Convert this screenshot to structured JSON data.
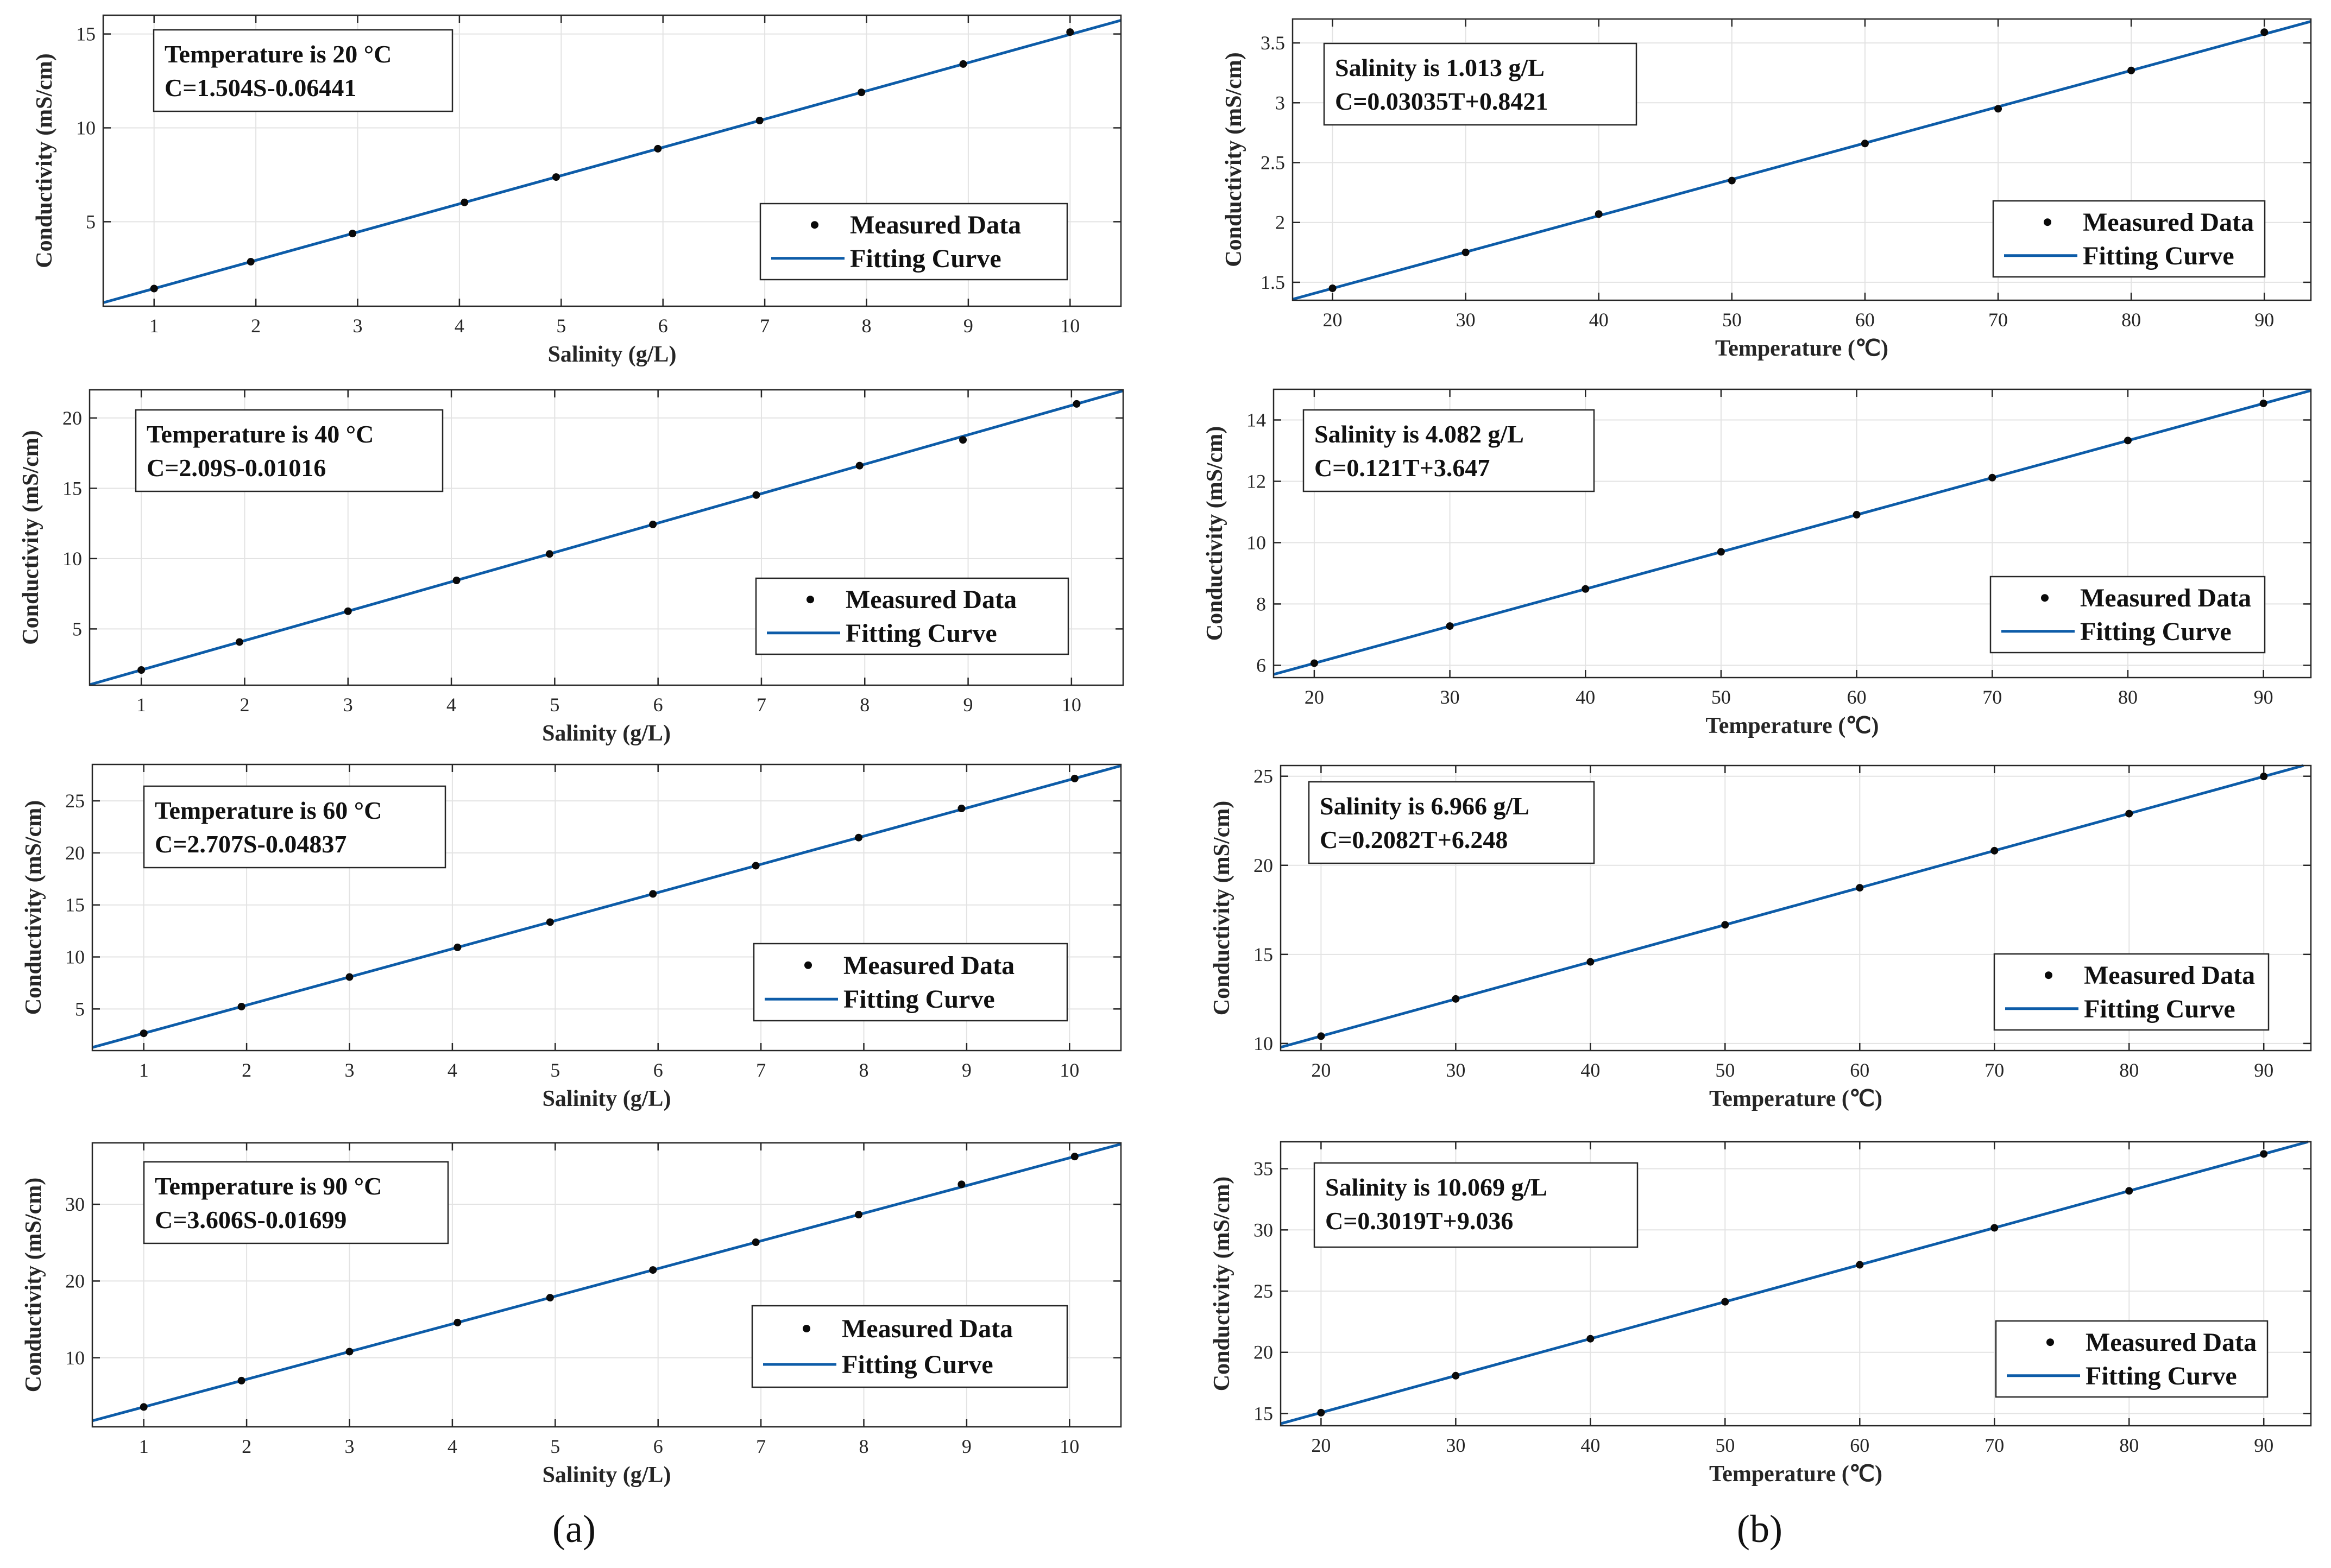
{
  "panel_labels": [
    "(a)",
    "(b)"
  ],
  "legend": {
    "measured": "Measured Data",
    "fitting": "Fitting Curve"
  },
  "colors": {
    "fit": "#0d5ca8",
    "points": "#0a0a0a",
    "grid": "#e3e3e3"
  },
  "chart_data": [
    {
      "type": "scatter",
      "id": "a1",
      "xlabel": "Salinity (g/L)",
      "ylabel": "Conductivity (mS/cm)",
      "xlim": [
        0.5,
        10.5
      ],
      "ylim": [
        0.5,
        16
      ],
      "xticks": [
        1,
        2,
        3,
        4,
        5,
        6,
        7,
        8,
        9,
        10
      ],
      "yticks": [
        5,
        10,
        15
      ],
      "annotation": [
        "Temperature is 20 °C",
        "C=1.504S-0.06441"
      ],
      "fit": {
        "slope": 1.504,
        "intercept": -0.06441
      },
      "x": [
        1,
        1.95,
        2.95,
        4.05,
        4.95,
        5.95,
        6.95,
        7.95,
        8.95,
        10.0
      ],
      "y": [
        1.44,
        2.87,
        4.37,
        6.03,
        7.38,
        8.89,
        10.39,
        11.89,
        13.4,
        15.1
      ]
    },
    {
      "type": "scatter",
      "id": "a2",
      "xlabel": "Salinity (g/L)",
      "ylabel": "Conductivity (mS/cm)",
      "xlim": [
        0.5,
        10.5
      ],
      "ylim": [
        1,
        22
      ],
      "xticks": [
        1,
        2,
        3,
        4,
        5,
        6,
        7,
        8,
        9,
        10
      ],
      "yticks": [
        5,
        10,
        15,
        20
      ],
      "annotation": [
        "Temperature is 40 °C",
        "C=2.09S-0.01016"
      ],
      "fit": {
        "slope": 2.09,
        "intercept": -0.01016
      },
      "x": [
        1,
        1.95,
        3.0,
        4.05,
        4.95,
        5.95,
        6.95,
        7.95,
        8.95,
        10.05
      ],
      "y": [
        2.08,
        4.07,
        6.26,
        8.45,
        10.33,
        12.43,
        14.52,
        16.61,
        18.44,
        21.0
      ]
    },
    {
      "type": "scatter",
      "id": "a3",
      "xlabel": "Salinity (g/L)",
      "ylabel": "Conductivity (mS/cm)",
      "xlim": [
        0.5,
        10.5
      ],
      "ylim": [
        1,
        28.5
      ],
      "xticks": [
        1,
        2,
        3,
        4,
        5,
        6,
        7,
        8,
        9,
        10
      ],
      "yticks": [
        5,
        10,
        15,
        20,
        25
      ],
      "annotation": [
        "Temperature is 60 °C",
        "C=2.707S-0.04837"
      ],
      "fit": {
        "slope": 2.707,
        "intercept": -0.04837
      },
      "x": [
        1,
        1.95,
        3.0,
        4.05,
        4.95,
        5.95,
        6.95,
        7.95,
        8.95,
        10.05
      ],
      "y": [
        2.66,
        5.23,
        8.07,
        10.92,
        13.35,
        16.06,
        18.77,
        21.47,
        24.27,
        27.15
      ]
    },
    {
      "type": "scatter",
      "id": "a4",
      "xlabel": "Salinity (g/L)",
      "ylabel": "Conductivity (mS/cm)",
      "xlim": [
        0.5,
        10.5
      ],
      "ylim": [
        1,
        38
      ],
      "xticks": [
        1,
        2,
        3,
        4,
        5,
        6,
        7,
        8,
        9,
        10
      ],
      "yticks": [
        10,
        20,
        30
      ],
      "annotation": [
        "Temperature is 90 °C",
        "C=3.606S-0.01699"
      ],
      "fit": {
        "slope": 3.606,
        "intercept": -0.01699
      },
      "x": [
        1,
        1.95,
        3.0,
        4.05,
        4.95,
        5.95,
        6.95,
        7.95,
        8.95,
        10.05
      ],
      "y": [
        3.59,
        7.02,
        10.8,
        14.59,
        17.83,
        21.44,
        25.05,
        28.65,
        32.6,
        36.22
      ]
    },
    {
      "type": "scatter",
      "id": "b1",
      "xlabel": "Temperature (℃)",
      "ylabel": "Conductivity (mS/cm)",
      "xlim": [
        17,
        93.5
      ],
      "ylim": [
        1.35,
        3.7
      ],
      "xticks": [
        20,
        30,
        40,
        50,
        60,
        70,
        80,
        90
      ],
      "yticks": [
        1.5,
        2,
        2.5,
        3,
        3.5
      ],
      "annotation": [
        "Salinity is 1.013 g/L",
        "C=0.03035T+0.8421"
      ],
      "fit": {
        "slope": 0.03035,
        "intercept": 0.8421
      },
      "x": [
        20,
        30,
        40,
        50,
        60,
        70,
        80,
        90
      ],
      "y": [
        1.45,
        1.75,
        2.07,
        2.35,
        2.66,
        2.95,
        3.27,
        3.59
      ]
    },
    {
      "type": "scatter",
      "id": "b2",
      "xlabel": "Temperature (℃)",
      "ylabel": "Conductivity (mS/cm)",
      "xlim": [
        17,
        93.5
      ],
      "ylim": [
        5.6,
        15
      ],
      "xticks": [
        20,
        30,
        40,
        50,
        60,
        70,
        80,
        90
      ],
      "yticks": [
        6,
        8,
        10,
        12,
        14
      ],
      "annotation": [
        "Salinity is 4.082 g/L",
        "C=0.121T+3.647"
      ],
      "fit": {
        "slope": 0.121,
        "intercept": 3.647
      },
      "x": [
        20,
        30,
        40,
        50,
        60,
        70,
        80,
        90
      ],
      "y": [
        6.07,
        7.28,
        8.49,
        9.7,
        10.91,
        12.12,
        13.33,
        14.54
      ]
    },
    {
      "type": "scatter",
      "id": "b3",
      "xlabel": "Temperature (℃)",
      "ylabel": "Conductivity (mS/cm)",
      "xlim": [
        17,
        93.5
      ],
      "ylim": [
        9.6,
        25.6
      ],
      "xticks": [
        20,
        30,
        40,
        50,
        60,
        70,
        80,
        90
      ],
      "yticks": [
        10,
        15,
        20,
        25
      ],
      "annotation": [
        "Salinity is 6.966 g/L",
        "C=0.2082T+6.248"
      ],
      "fit": {
        "slope": 0.2082,
        "intercept": 6.248
      },
      "x": [
        20,
        30,
        40,
        50,
        60,
        70,
        80,
        90
      ],
      "y": [
        10.41,
        12.5,
        14.58,
        16.66,
        18.74,
        20.82,
        22.9,
        24.99
      ]
    },
    {
      "type": "scatter",
      "id": "b4",
      "xlabel": "Temperature (℃)",
      "ylabel": "Conductivity (mS/cm)",
      "xlim": [
        17,
        93.5
      ],
      "ylim": [
        14,
        37.2
      ],
      "xticks": [
        20,
        30,
        40,
        50,
        60,
        70,
        80,
        90
      ],
      "yticks": [
        15,
        20,
        25,
        30,
        35
      ],
      "annotation": [
        "Salinity is 10.069 g/L",
        "C=0.3019T+9.036"
      ],
      "fit": {
        "slope": 0.3019,
        "intercept": 9.036
      },
      "x": [
        20,
        30,
        40,
        50,
        60,
        70,
        80,
        90
      ],
      "y": [
        15.07,
        18.09,
        21.11,
        24.13,
        27.15,
        30.17,
        33.19,
        36.21
      ]
    }
  ]
}
